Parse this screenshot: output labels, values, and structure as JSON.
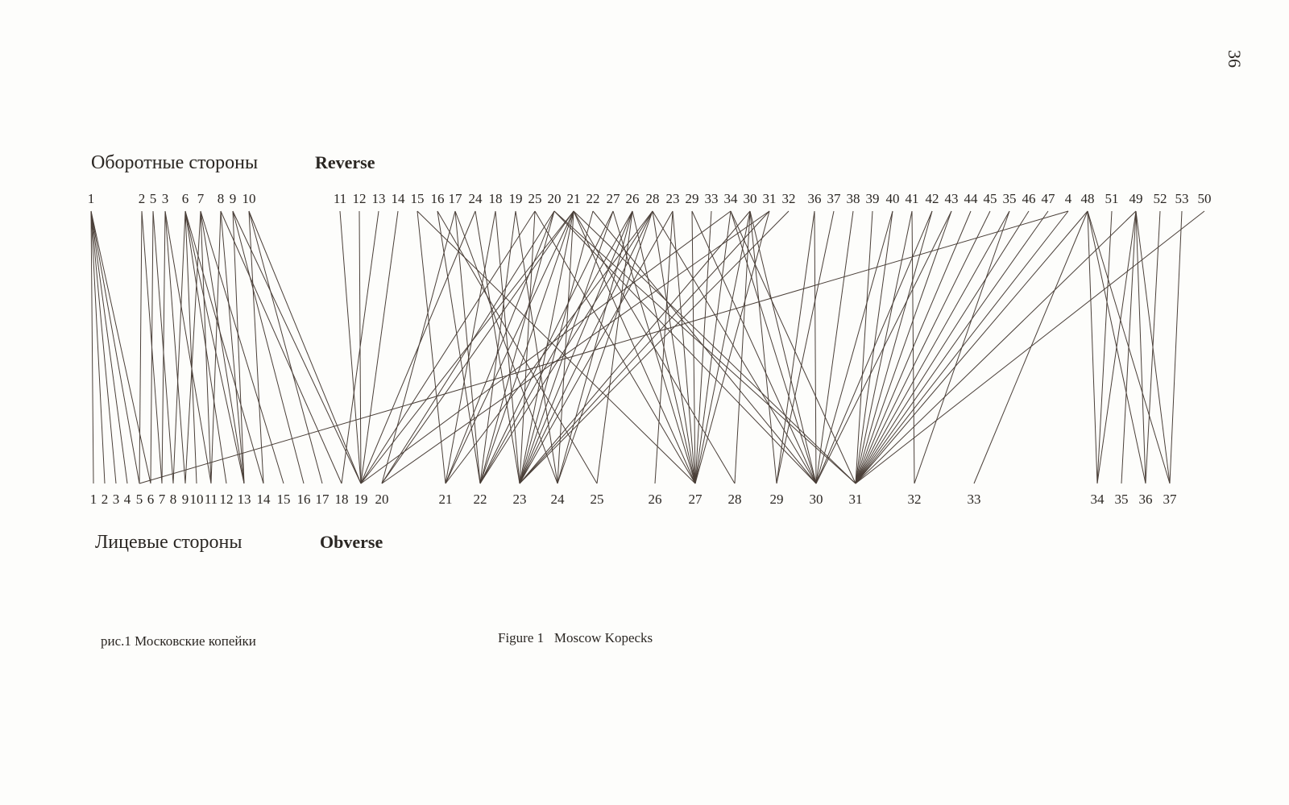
{
  "page_number": "36",
  "headers": {
    "reverse_ru": "Оборотные стороны",
    "reverse_en": "Reverse",
    "obverse_ru": "Лицевые стороны",
    "obverse_en": "Obverse"
  },
  "captions": {
    "ru": "рис.1 Московские копейки",
    "en": "Figure 1   Moscow Kopecks"
  },
  "colors": {
    "line": "#4a3f38",
    "text": "#2a2622",
    "paper": "#fdfdfb"
  },
  "top_nodes": [
    "1",
    "2",
    "5",
    "3",
    "6",
    "7",
    "8",
    "9",
    "10",
    "11",
    "12",
    "13",
    "14",
    "15",
    "16",
    "17",
    "24",
    "18",
    "19",
    "25",
    "20",
    "21",
    "22",
    "27",
    "26",
    "28",
    "23",
    "29",
    "33",
    "34",
    "30",
    "31",
    "32",
    "36",
    "37",
    "38",
    "39",
    "40",
    "41",
    "42",
    "43",
    "44",
    "45",
    "35",
    "46",
    "47",
    "4",
    "48",
    "51",
    "49",
    "52",
    "53",
    "50"
  ],
  "bottom_nodes": [
    "1",
    "2",
    "3",
    "4",
    "5",
    "6",
    "7",
    "8",
    "9",
    "10",
    "11",
    "12",
    "13",
    "14",
    "15",
    "16",
    "17",
    "18",
    "19",
    "20",
    "21",
    "22",
    "23",
    "24",
    "25",
    "26",
    "27",
    "28",
    "29",
    "30",
    "31",
    "32",
    "33",
    "34",
    "35",
    "36",
    "37"
  ],
  "links": [
    [
      0,
      0
    ],
    [
      0,
      1
    ],
    [
      0,
      2
    ],
    [
      0,
      3
    ],
    [
      0,
      4
    ],
    [
      0,
      5
    ],
    [
      1,
      4
    ],
    [
      1,
      6
    ],
    [
      2,
      5
    ],
    [
      2,
      7
    ],
    [
      3,
      6
    ],
    [
      3,
      8
    ],
    [
      3,
      10
    ],
    [
      4,
      7
    ],
    [
      4,
      9
    ],
    [
      4,
      11
    ],
    [
      4,
      12
    ],
    [
      4,
      13
    ],
    [
      5,
      8
    ],
    [
      5,
      10
    ],
    [
      5,
      12
    ],
    [
      5,
      14
    ],
    [
      6,
      10
    ],
    [
      6,
      12
    ],
    [
      6,
      17
    ],
    [
      7,
      12
    ],
    [
      7,
      15
    ],
    [
      7,
      18
    ],
    [
      8,
      13
    ],
    [
      8,
      16
    ],
    [
      8,
      18
    ],
    [
      9,
      18
    ],
    [
      10,
      18
    ],
    [
      11,
      17
    ],
    [
      12,
      18
    ],
    [
      13,
      20
    ],
    [
      13,
      26
    ],
    [
      14,
      21
    ],
    [
      14,
      24
    ],
    [
      15,
      19
    ],
    [
      15,
      21
    ],
    [
      15,
      23
    ],
    [
      16,
      18
    ],
    [
      16,
      22
    ],
    [
      17,
      20
    ],
    [
      17,
      22
    ],
    [
      18,
      21
    ],
    [
      18,
      23
    ],
    [
      19,
      18
    ],
    [
      19,
      22
    ],
    [
      19,
      26
    ],
    [
      20,
      19
    ],
    [
      20,
      20
    ],
    [
      20,
      21
    ],
    [
      20,
      29
    ],
    [
      20,
      30
    ],
    [
      21,
      18
    ],
    [
      21,
      19
    ],
    [
      21,
      20
    ],
    [
      21,
      21
    ],
    [
      21,
      22
    ],
    [
      21,
      23
    ],
    [
      21,
      26
    ],
    [
      21,
      27
    ],
    [
      21,
      30
    ],
    [
      22,
      22
    ],
    [
      22,
      29
    ],
    [
      23,
      21
    ],
    [
      23,
      22
    ],
    [
      23,
      26
    ],
    [
      24,
      21
    ],
    [
      24,
      22
    ],
    [
      24,
      23
    ],
    [
      24,
      24
    ],
    [
      24,
      26
    ],
    [
      25,
      20
    ],
    [
      25,
      21
    ],
    [
      25,
      22
    ],
    [
      25,
      23
    ],
    [
      25,
      26
    ],
    [
      25,
      29
    ],
    [
      26,
      22
    ],
    [
      26,
      25
    ],
    [
      26,
      26
    ],
    [
      27,
      26
    ],
    [
      27,
      29
    ],
    [
      28,
      26
    ],
    [
      29,
      18
    ],
    [
      29,
      26
    ],
    [
      29,
      29
    ],
    [
      29,
      30
    ],
    [
      30,
      22
    ],
    [
      30,
      26
    ],
    [
      30,
      27
    ],
    [
      30,
      28
    ],
    [
      30,
      29
    ],
    [
      31,
      19
    ],
    [
      31,
      22
    ],
    [
      31,
      26
    ],
    [
      32,
      22
    ],
    [
      33,
      28
    ],
    [
      33,
      29
    ],
    [
      34,
      28
    ],
    [
      35,
      29
    ],
    [
      36,
      30
    ],
    [
      37,
      29
    ],
    [
      37,
      30
    ],
    [
      38,
      30
    ],
    [
      38,
      31
    ],
    [
      39,
      29
    ],
    [
      39,
      30
    ],
    [
      40,
      30
    ],
    [
      40,
      29
    ],
    [
      41,
      30
    ],
    [
      42,
      30
    ],
    [
      43,
      30
    ],
    [
      43,
      31
    ],
    [
      44,
      30
    ],
    [
      45,
      30
    ],
    [
      46,
      4
    ],
    [
      46,
      30
    ],
    [
      47,
      30
    ],
    [
      47,
      32
    ],
    [
      47,
      33
    ],
    [
      47,
      35
    ],
    [
      47,
      36
    ],
    [
      48,
      33
    ],
    [
      49,
      30
    ],
    [
      49,
      33
    ],
    [
      49,
      34
    ],
    [
      49,
      35
    ],
    [
      49,
      36
    ],
    [
      50,
      35
    ],
    [
      51,
      36
    ],
    [
      52,
      30
    ]
  ]
}
